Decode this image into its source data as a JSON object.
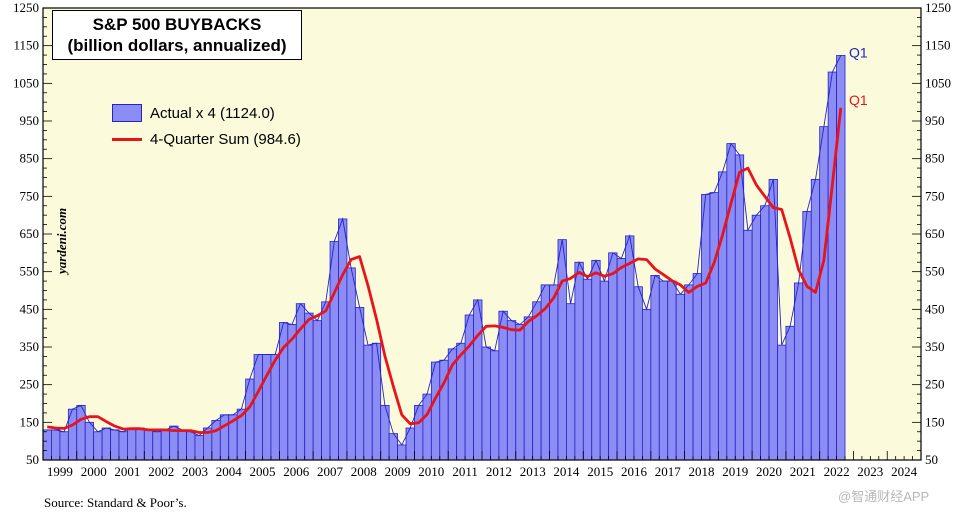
{
  "title_line1": "S&P 500 BUYBACKS",
  "title_line2": "(billion dollars, annualized)",
  "legend": {
    "bars": "Actual x 4 (1124.0)",
    "line": "4-Quarter Sum (984.6)"
  },
  "watermark_brand": "yardeni.com",
  "source": "Source: Standard & Poor’s.",
  "app_watermark": "@智通财经APP",
  "colors": {
    "plot_bg": "#fbfbdc",
    "bar_fill": "#8c8cf5",
    "bar_stroke": "#2323c8",
    "line": "#e8141c"
  },
  "chart_data": {
    "type": "bar+line",
    "frequency": "quarterly",
    "start": "1999Q1",
    "x_axis_years": [
      "1999",
      "2000",
      "2001",
      "2002",
      "2003",
      "2004",
      "2005",
      "2006",
      "2007",
      "2008",
      "2009",
      "2010",
      "2011",
      "2012",
      "2013",
      "2014",
      "2015",
      "2016",
      "2017",
      "2018",
      "2019",
      "2020",
      "2021",
      "2022",
      "2023",
      "2024"
    ],
    "ylim": [
      50,
      1250
    ],
    "yticks": [
      50,
      150,
      250,
      350,
      450,
      550,
      650,
      750,
      850,
      950,
      1050,
      1150,
      1250
    ],
    "series": [
      {
        "name": "Actual x 4 (1124.0)",
        "kind": "bar",
        "values": [
          130,
          130,
          125,
          185,
          195,
          150,
          125,
          135,
          130,
          125,
          135,
          135,
          130,
          125,
          130,
          140,
          130,
          125,
          115,
          135,
          155,
          170,
          170,
          185,
          265,
          330,
          330,
          330,
          415,
          410,
          465,
          440,
          420,
          470,
          630,
          690,
          560,
          455,
          355,
          360,
          195,
          120,
          90,
          135,
          195,
          225,
          310,
          315,
          345,
          360,
          435,
          475,
          350,
          340,
          445,
          420,
          410,
          430,
          470,
          515,
          515,
          635,
          465,
          575,
          530,
          580,
          525,
          600,
          585,
          645,
          510,
          450,
          540,
          525,
          525,
          490,
          515,
          545,
          755,
          760,
          815,
          890,
          860,
          660,
          700,
          725,
          795,
          355,
          405,
          520,
          710,
          795,
          935,
          1080,
          1124
        ],
        "end_label": "Q1"
      },
      {
        "name": "4-Quarter Sum (984.6)",
        "kind": "line",
        "values": [
          138,
          135,
          134,
          143,
          158,
          165,
          165,
          152,
          140,
          132,
          133,
          133,
          130,
          130,
          130,
          128,
          128,
          128,
          123,
          123,
          128,
          141,
          154,
          168,
          191,
          232,
          274,
          315,
          349,
          371,
          398,
          423,
          433,
          446,
          494,
          542,
          582,
          590,
          513,
          424,
          326,
          245,
          170,
          146,
          149,
          171,
          215,
          255,
          303,
          329,
          353,
          381,
          405,
          406,
          402,
          396,
          395,
          418,
          433,
          452,
          481,
          525,
          532,
          548,
          537,
          547,
          538,
          545,
          561,
          572,
          584,
          582,
          557,
          542,
          526,
          515,
          495,
          511,
          520,
          574,
          648,
          731,
          814,
          825,
          780,
          750,
          720,
          715,
          640,
          555,
          511,
          495,
          581,
          782,
          985
        ],
        "end_label": "Q1"
      }
    ]
  }
}
